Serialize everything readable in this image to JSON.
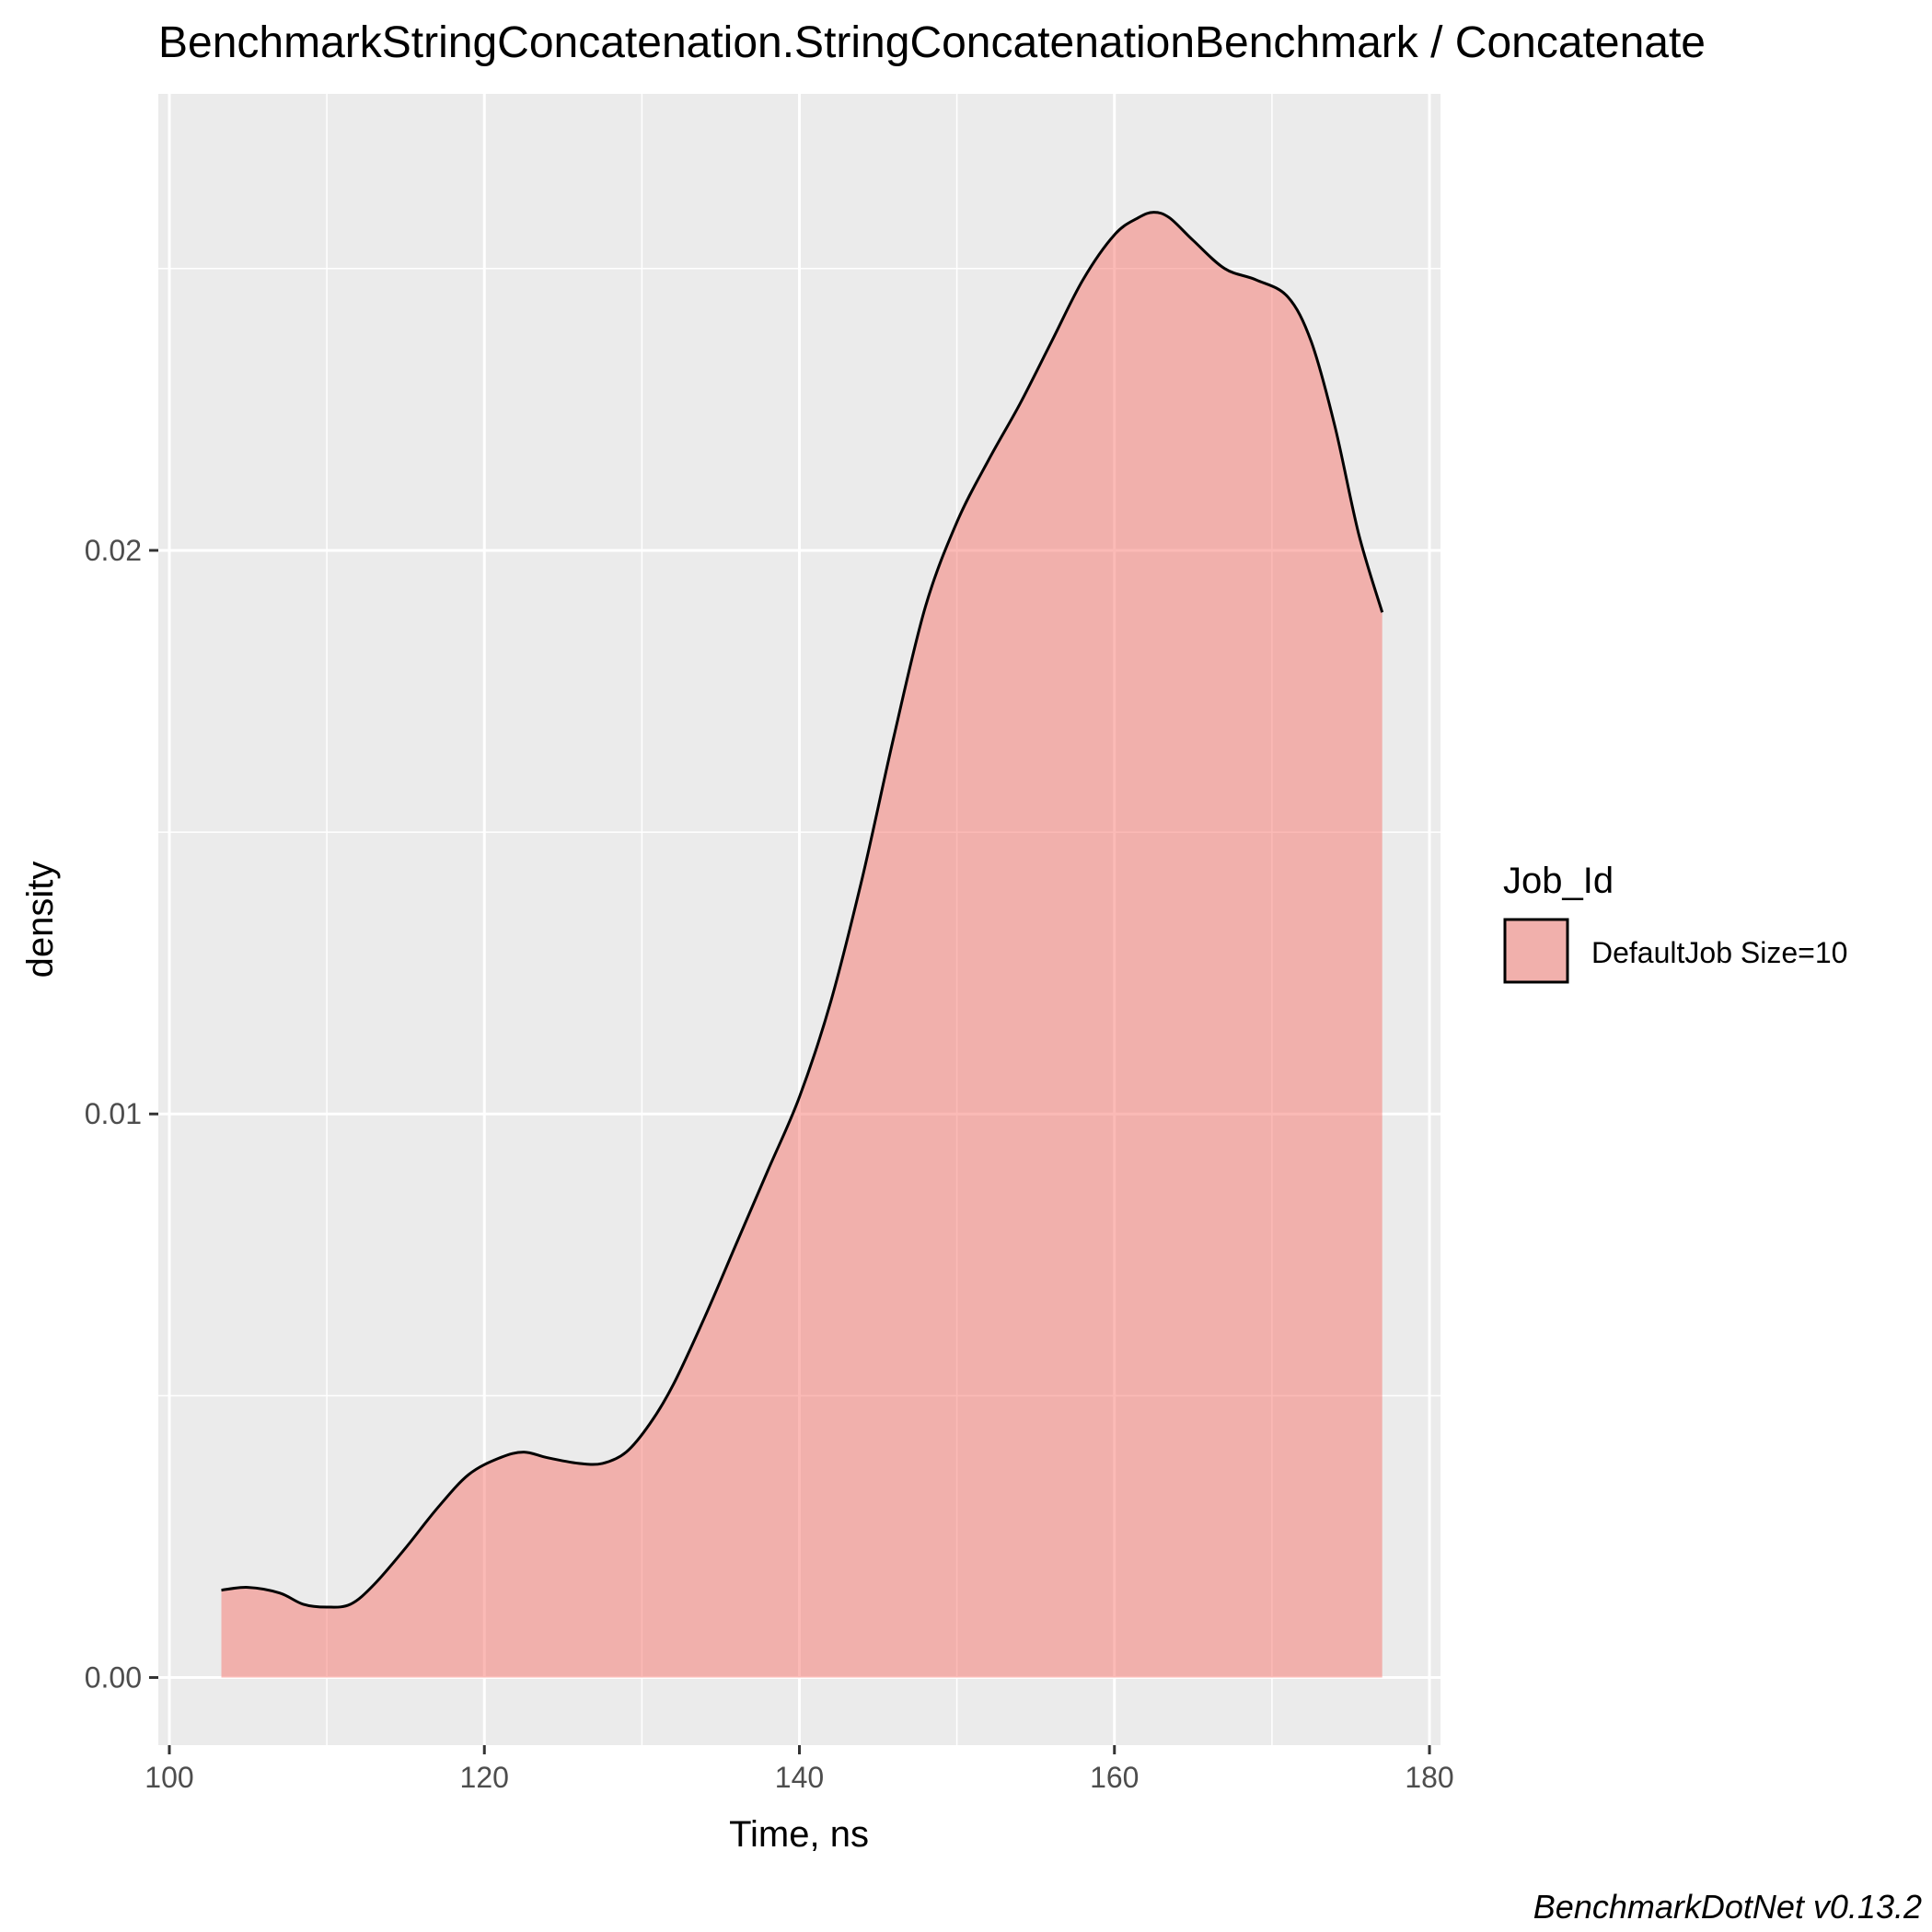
{
  "chart_data": {
    "type": "area",
    "subtype": "density",
    "title": "BenchmarkStringConcatenation.StringConcatenationBenchmark / Concatenate",
    "xlabel": "Time, ns",
    "ylabel": "density",
    "xlim": [
      99.3,
      180.7
    ],
    "ylim": [
      -0.0012,
      0.0281
    ],
    "x_ticks": [
      100,
      120,
      140,
      160,
      180
    ],
    "x_tick_labels": [
      "100",
      "120",
      "140",
      "160",
      "180"
    ],
    "y_ticks": [
      0.0,
      0.01,
      0.02
    ],
    "y_tick_labels": [
      "0.00",
      "0.01",
      "0.02"
    ],
    "grid": true,
    "legend": {
      "title": "Job_Id",
      "position": "right",
      "entries": [
        "DefaultJob Size=10"
      ]
    },
    "caption": "BenchmarkDotNet v0.13.2",
    "colors": {
      "fill": "#f8766d",
      "fill_opacity": 0.5,
      "stroke": "#000000",
      "panel": "#ebebeb",
      "grid": "#ffffff"
    },
    "series": [
      {
        "name": "DefaultJob Size=10",
        "x": [
          103.3,
          105,
          107,
          108.5,
          110,
          111.5,
          113,
          115,
          117,
          119,
          121,
          122.5,
          124,
          126,
          127.5,
          129,
          130.5,
          132,
          134,
          136,
          138,
          140,
          142,
          144,
          146,
          148,
          150,
          152,
          154,
          156,
          158,
          160,
          161.5,
          162.5,
          163.5,
          165,
          167,
          169,
          171,
          172.5,
          174,
          175.5,
          177
        ],
        "y": [
          0.00155,
          0.0016,
          0.0015,
          0.0013,
          0.00125,
          0.0013,
          0.00165,
          0.0023,
          0.003,
          0.0036,
          0.0039,
          0.004,
          0.0039,
          0.0038,
          0.0038,
          0.004,
          0.0045,
          0.0052,
          0.0064,
          0.0077,
          0.009,
          0.0103,
          0.012,
          0.0142,
          0.0167,
          0.019,
          0.0205,
          0.0216,
          0.0226,
          0.0237,
          0.0248,
          0.0256,
          0.0259,
          0.026,
          0.0259,
          0.0255,
          0.025,
          0.0248,
          0.0245,
          0.0237,
          0.0222,
          0.0203,
          0.0189
        ]
      }
    ]
  }
}
